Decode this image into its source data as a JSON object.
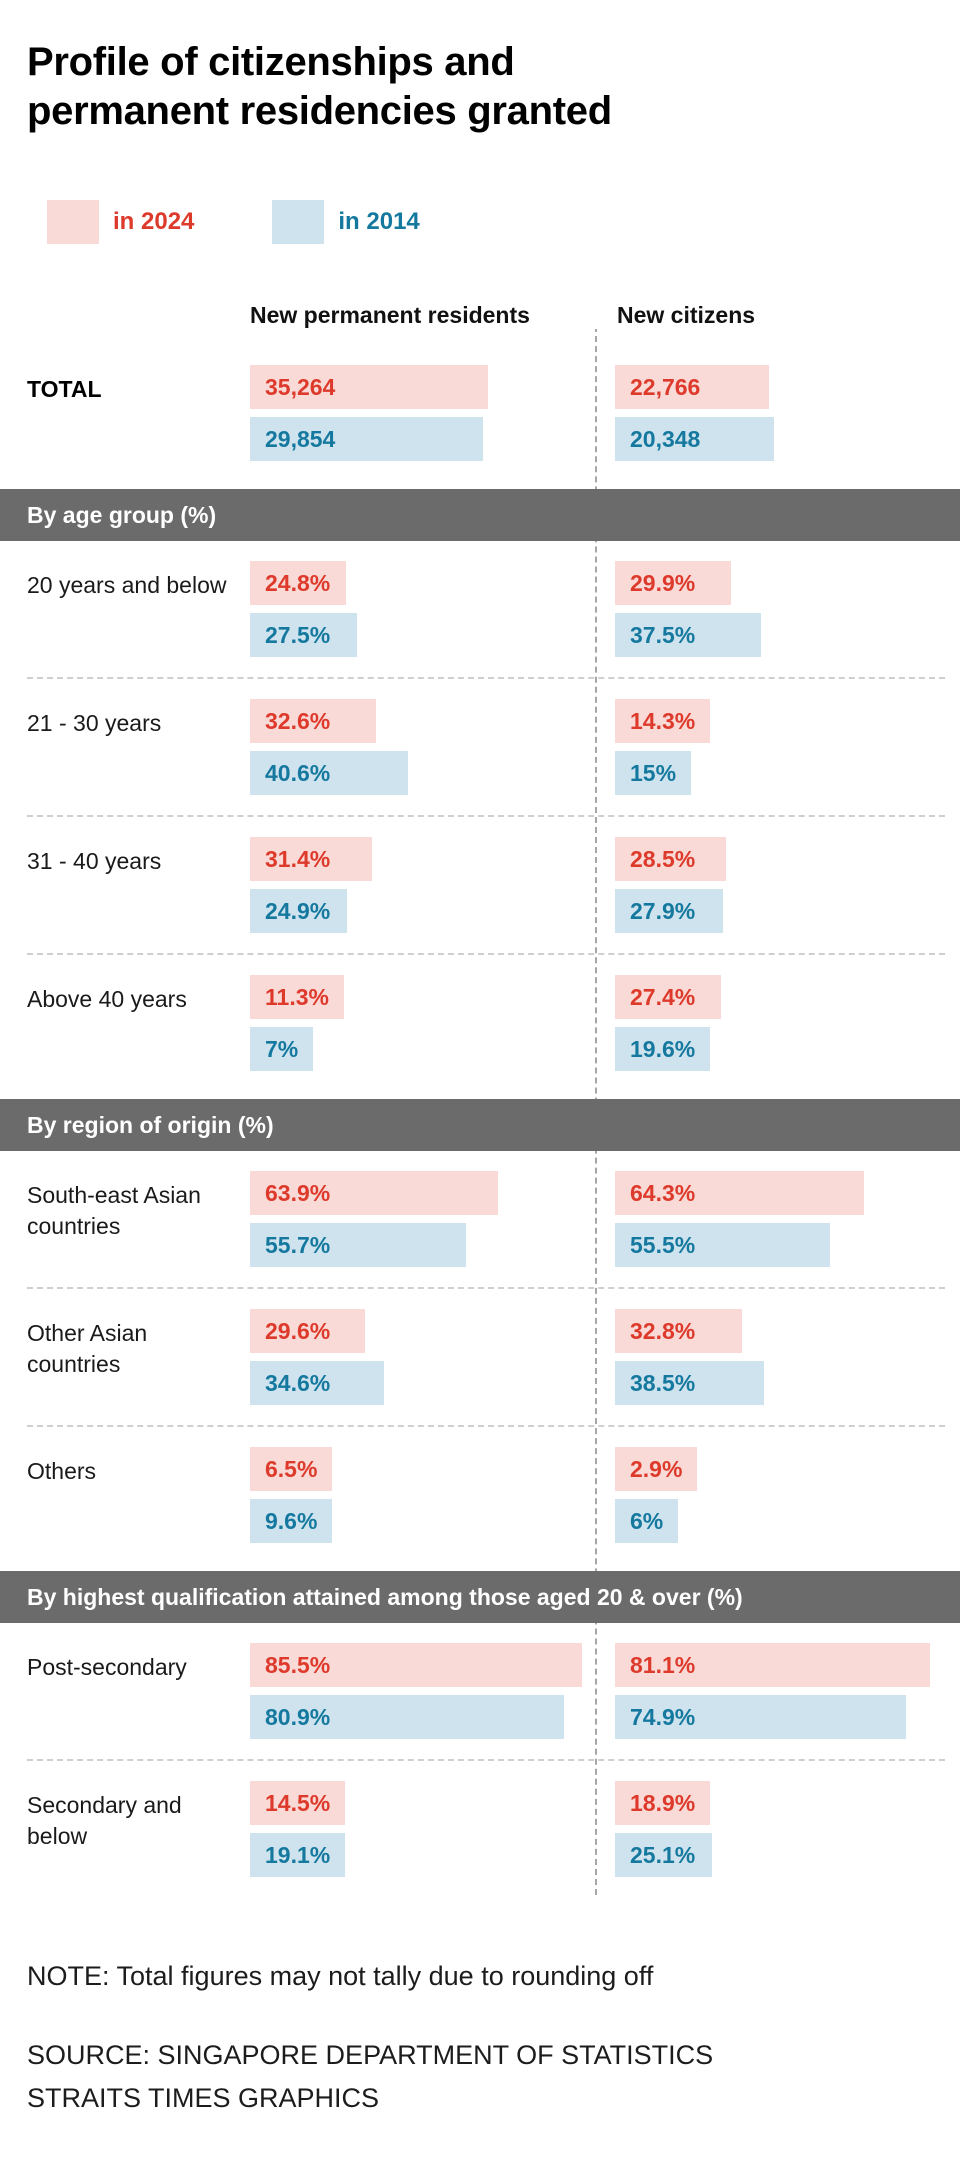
{
  "title": {
    "line1": "Profile of citizenships and",
    "line2": "permanent residencies granted"
  },
  "legend": {
    "items": [
      {
        "label": "in 2024",
        "color": "#fadad6",
        "text_color": "#dd3a2c"
      },
      {
        "label": "in 2014",
        "color": "#cfe3ee",
        "text_color": "#15799f"
      }
    ]
  },
  "columns": {
    "left": "New permanent residents",
    "right": "New citizens"
  },
  "chart_data": {
    "type": "bar",
    "orientation": "horizontal",
    "groups": [
      "New permanent residents",
      "New citizens"
    ],
    "series": [
      "in 2024",
      "in 2014"
    ],
    "total": {
      "label": "TOTAL",
      "pr_2024": "35,264",
      "pr_2014": "29,854",
      "nc_2024": "22,766",
      "nc_2014": "20,348"
    },
    "sections": [
      {
        "header": "By age group (%)",
        "rows": [
          {
            "label": "20 years and below",
            "pr_2024": "24.8%",
            "pr_2014": "27.5%",
            "nc_2024": "29.9%",
            "nc_2014": "37.5%"
          },
          {
            "label": "21 - 30 years",
            "pr_2024": "32.6%",
            "pr_2014": "40.6%",
            "nc_2024": "14.3%",
            "nc_2014": "15%"
          },
          {
            "label": "31 - 40 years",
            "pr_2024": "31.4%",
            "pr_2014": "24.9%",
            "nc_2024": "28.5%",
            "nc_2014": "27.9%"
          },
          {
            "label": "Above 40 years",
            "pr_2024": "11.3%",
            "pr_2014": "7%",
            "nc_2024": "27.4%",
            "nc_2014": "19.6%"
          }
        ]
      },
      {
        "header": "By region of origin (%)",
        "rows": [
          {
            "label": "South-east Asian countries",
            "pr_2024": "63.9%",
            "pr_2014": "55.7%",
            "nc_2024": "64.3%",
            "nc_2014": "55.5%"
          },
          {
            "label": "Other Asian countries",
            "pr_2024": "29.6%",
            "pr_2014": "34.6%",
            "nc_2024": "32.8%",
            "nc_2014": "38.5%"
          },
          {
            "label": "Others",
            "pr_2024": "6.5%",
            "pr_2014": "9.6%",
            "nc_2024": "2.9%",
            "nc_2014": "6%"
          }
        ]
      },
      {
        "header": "By highest qualification attained among those aged 20 & over (%)",
        "rows": [
          {
            "label": "Post-secondary",
            "pr_2024": "85.5%",
            "pr_2014": "80.9%",
            "nc_2024": "81.1%",
            "nc_2014": "74.9%"
          },
          {
            "label": "Secondary and below",
            "pr_2024": "14.5%",
            "pr_2014": "19.1%",
            "nc_2024": "18.9%",
            "nc_2014": "25.1%"
          }
        ]
      }
    ]
  },
  "footer": {
    "note": "NOTE: Total figures may not tally due to rounding off",
    "source_line1": "SOURCE: SINGAPORE DEPARTMENT OF STATISTICS",
    "source_line2": "STRAITS TIMES GRAPHICS"
  }
}
